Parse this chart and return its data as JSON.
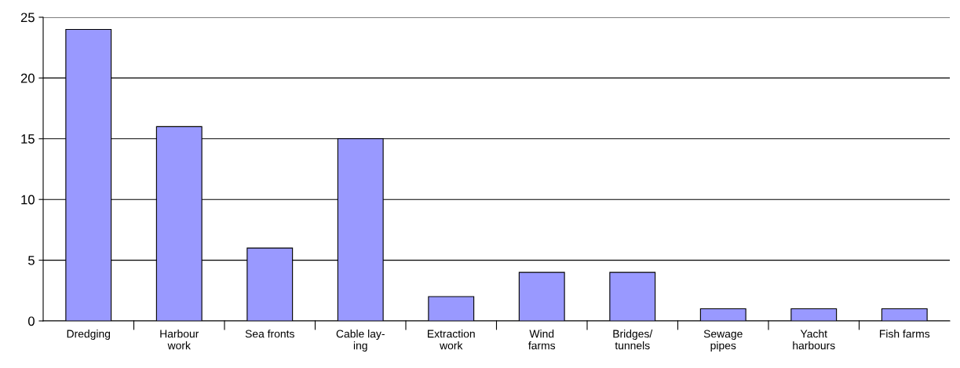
{
  "chart_data": {
    "type": "bar",
    "categories": [
      "Dredging",
      "Harbour\nwork",
      "Sea fronts",
      "Cable lay-\ning",
      "Extraction\nwork",
      "Wind\nfarms",
      "Bridges/\ntunnels",
      "Sewage\npipes",
      "Yacht\nharbours",
      "Fish farms"
    ],
    "values": [
      24,
      16,
      6,
      15,
      2,
      4,
      4,
      1,
      1,
      1
    ],
    "color": "#9999ff",
    "ylim": [
      0,
      25
    ],
    "yticks": [
      0,
      5,
      10,
      15,
      20,
      25
    ],
    "grid": "y",
    "legend": false
  }
}
